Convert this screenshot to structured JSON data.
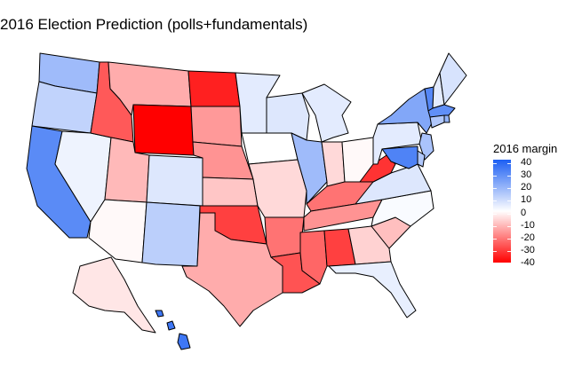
{
  "title": "2016 Election Prediction (polls+fundamentals)",
  "legend": {
    "title": "2016 margin",
    "ticks": [
      "40",
      "30",
      "20",
      "10",
      "0",
      "-10",
      "-20",
      "-30",
      "-40"
    ],
    "colors": {
      "dem": "#1c5ff3",
      "neutral": "#ffffff",
      "rep": "#ff0000"
    }
  },
  "states": [
    {
      "id": "WA",
      "margin": 17
    },
    {
      "id": "OR",
      "margin": 11
    },
    {
      "id": "CA",
      "margin": 29
    },
    {
      "id": "NV",
      "margin": 3
    },
    {
      "id": "ID",
      "margin": -26
    },
    {
      "id": "MT",
      "margin": -13
    },
    {
      "id": "WY",
      "margin": -40
    },
    {
      "id": "UT",
      "margin": -11
    },
    {
      "id": "AZ",
      "margin": -1
    },
    {
      "id": "CO",
      "margin": 6
    },
    {
      "id": "NM",
      "margin": 12
    },
    {
      "id": "ND",
      "margin": -35
    },
    {
      "id": "SD",
      "margin": -16
    },
    {
      "id": "NE",
      "margin": -17
    },
    {
      "id": "KS",
      "margin": -9
    },
    {
      "id": "OK",
      "margin": -30
    },
    {
      "id": "TX",
      "margin": -13
    },
    {
      "id": "MN",
      "margin": 5
    },
    {
      "id": "IA",
      "margin": 0
    },
    {
      "id": "MO",
      "margin": -6
    },
    {
      "id": "AR",
      "margin": -22
    },
    {
      "id": "LA",
      "margin": -27
    },
    {
      "id": "WI",
      "margin": 6
    },
    {
      "id": "IL",
      "margin": 17
    },
    {
      "id": "MI",
      "margin": 5
    },
    {
      "id": "IN",
      "margin": -6
    },
    {
      "id": "OH",
      "margin": -1
    },
    {
      "id": "KY",
      "margin": -22
    },
    {
      "id": "TN",
      "margin": -17
    },
    {
      "id": "MS",
      "margin": -24
    },
    {
      "id": "AL",
      "margin": -30
    },
    {
      "id": "GA",
      "margin": -7
    },
    {
      "id": "FL",
      "margin": 4
    },
    {
      "id": "SC",
      "margin": -10
    },
    {
      "id": "NC",
      "margin": 1
    },
    {
      "id": "VA",
      "margin": 6
    },
    {
      "id": "WV",
      "margin": -32
    },
    {
      "id": "PA",
      "margin": 5
    },
    {
      "id": "NY",
      "margin": 22
    },
    {
      "id": "VT",
      "margin": 30
    },
    {
      "id": "NH",
      "margin": 5
    },
    {
      "id": "ME",
      "margin": 7
    },
    {
      "id": "MA",
      "margin": 28
    },
    {
      "id": "RI",
      "margin": 19
    },
    {
      "id": "CT",
      "margin": 14
    },
    {
      "id": "NJ",
      "margin": 15
    },
    {
      "id": "DE",
      "margin": 14
    },
    {
      "id": "MD",
      "margin": 31
    },
    {
      "id": "AK",
      "margin": -4
    },
    {
      "id": "HI",
      "margin": 34
    }
  ]
}
